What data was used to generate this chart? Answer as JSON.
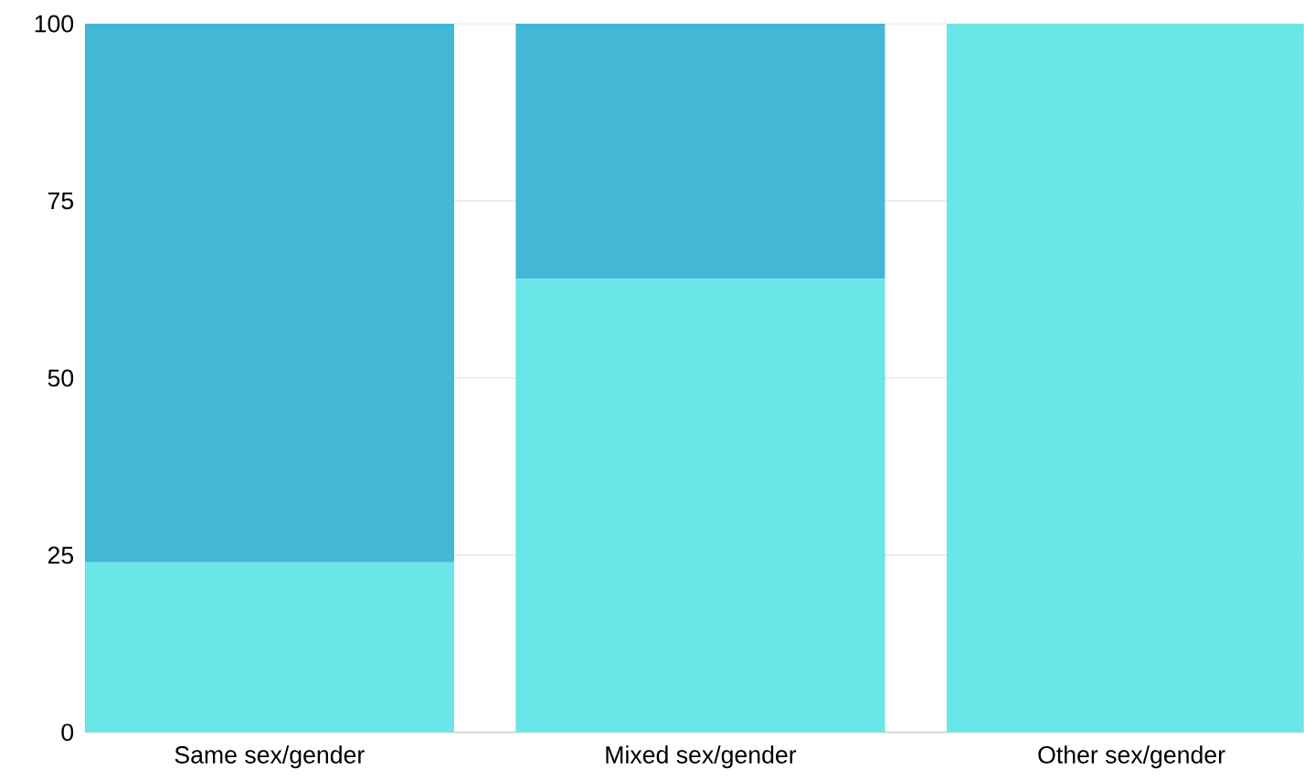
{
  "chart_data": {
    "type": "bar",
    "categories": [
      "Same sex/gender",
      "Mixed sex/gender",
      "Other sex/gender"
    ],
    "stacked": true,
    "series": [
      {
        "color": "#6ae5e8",
        "values": [
          24,
          64,
          100
        ]
      },
      {
        "color": "#43b7d6",
        "values": [
          76,
          36,
          0
        ]
      }
    ],
    "ylim": [
      0,
      100
    ],
    "yticks": [
      0,
      25,
      50,
      75,
      100
    ],
    "grid": "y"
  }
}
